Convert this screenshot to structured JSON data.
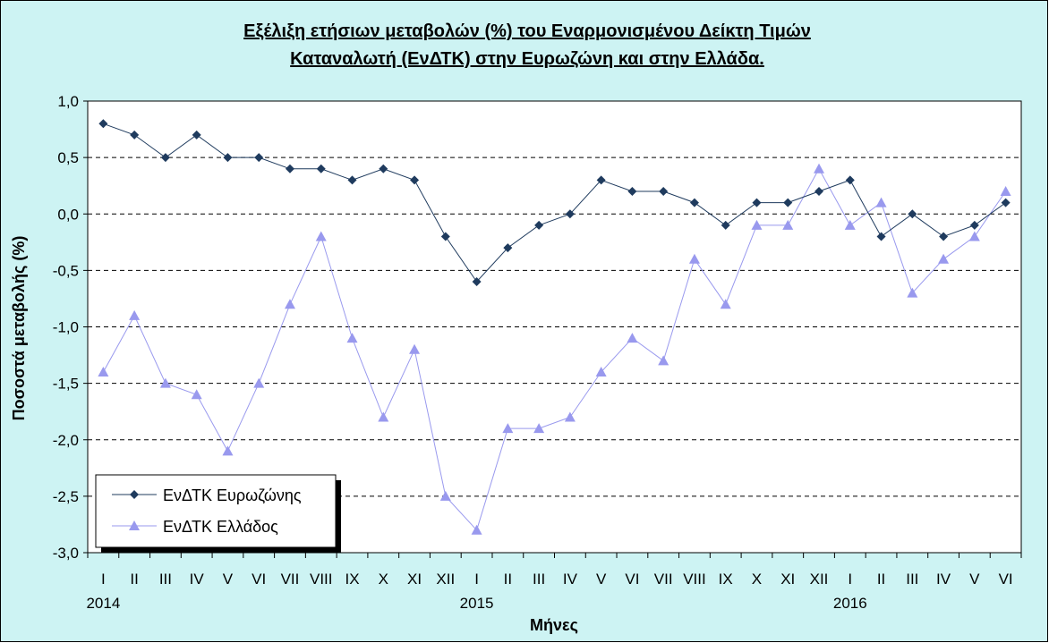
{
  "chart_data": {
    "type": "line",
    "title_lines": [
      "Εξέλιξη ετήσιων μεταβολών (%) του Εναρμονισμένου Δείκτη Τιμών",
      "Καταναλωτή (ΕνΔΤΚ) στην Ευρωζώνη  και στην Ελλάδα."
    ],
    "xlabel": "Μήνες",
    "ylabel": "Ποσοστά μεταβολής (%)",
    "ylim": [
      -3.0,
      1.0
    ],
    "y_ticks": [
      "1,0",
      "0,5",
      "0,0",
      "-0,5",
      "-1,0",
      "-1,5",
      "-2,0",
      "-2,5",
      "-3,0"
    ],
    "y_tick_values": [
      1.0,
      0.5,
      0.0,
      -0.5,
      -1.0,
      -1.5,
      -2.0,
      -2.5,
      -3.0
    ],
    "grid": "horizontal dashed",
    "legend_position": "bottom-left",
    "categories": [
      "I",
      "II",
      "III",
      "IV",
      "V",
      "VI",
      "VII",
      "VIII",
      "IX",
      "X",
      "XI",
      "XII",
      "I",
      "II",
      "III",
      "IV",
      "V",
      "VI",
      "VII",
      "VIII",
      "IX",
      "X",
      "XI",
      "XII",
      "I",
      "II",
      "III",
      "IV",
      "V",
      "VI"
    ],
    "year_labels": [
      {
        "label": "2014",
        "index": 0
      },
      {
        "label": "2015",
        "index": 12
      },
      {
        "label": "2016",
        "index": 24
      }
    ],
    "series": [
      {
        "name": "ΕνΔΤΚ Ευρωζώνης",
        "marker": "diamond",
        "color": "#1f3b5e",
        "values": [
          0.8,
          0.7,
          0.5,
          0.7,
          0.5,
          0.5,
          0.4,
          0.4,
          0.3,
          0.4,
          0.3,
          -0.2,
          -0.6,
          -0.3,
          -0.1,
          0.0,
          0.3,
          0.2,
          0.2,
          0.1,
          -0.1,
          0.1,
          0.1,
          0.2,
          0.3,
          -0.2,
          0.0,
          -0.2,
          -0.1,
          0.1
        ]
      },
      {
        "name": "ΕνΔΤΚ Ελλάδος",
        "marker": "triangle",
        "color": "#9999ee",
        "values": [
          -1.4,
          -0.9,
          -1.5,
          -1.6,
          -2.1,
          -1.5,
          -0.8,
          -0.2,
          -1.1,
          -1.8,
          -1.2,
          -2.5,
          -2.8,
          -1.9,
          -1.9,
          -1.8,
          -1.4,
          -1.1,
          -1.3,
          -0.4,
          -0.8,
          -0.1,
          -0.1,
          0.4,
          -0.1,
          0.1,
          -0.7,
          -0.4,
          -0.2,
          0.2
        ]
      }
    ]
  },
  "style": {
    "outer_background": "#cdf3f3",
    "plot_background": "#ffffff",
    "border_color": "#000000",
    "gridline_color": "#000000"
  }
}
